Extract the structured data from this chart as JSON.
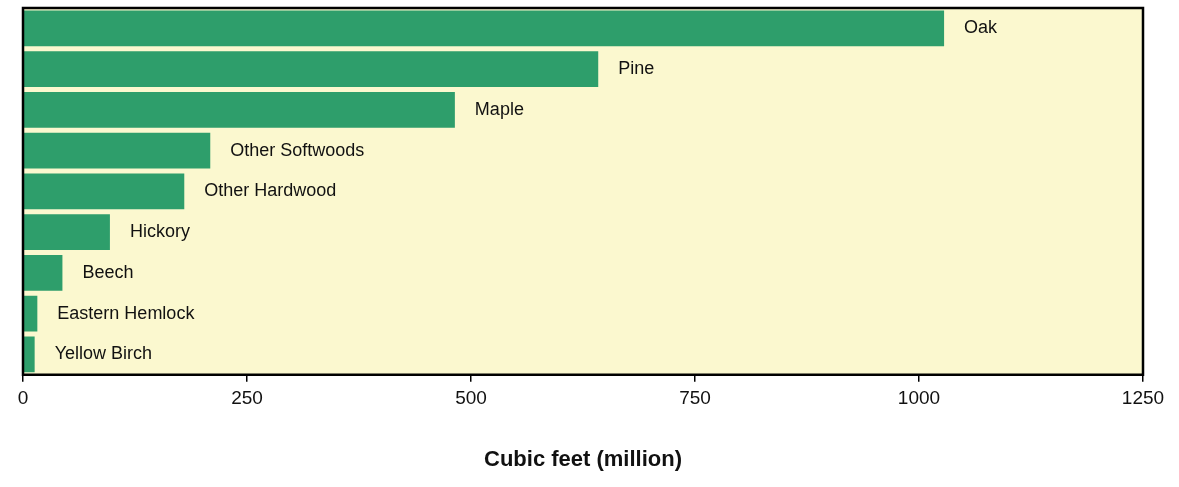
{
  "chart_data": {
    "type": "bar",
    "orientation": "horizontal",
    "xlabel": "Cubic feet (million)",
    "categories": [
      "Oak",
      "Pine",
      "Maple",
      "Other Softwoods",
      "Other Hardwood",
      "Hickory",
      "Beech",
      "Eastern Hemlock",
      "Yellow Birch"
    ],
    "values": [
      1028,
      642,
      482,
      209,
      180,
      97,
      44,
      16,
      13
    ],
    "color": "#2e9e6b",
    "xlim": [
      0,
      1250
    ],
    "xticks": [
      0,
      250,
      500,
      750,
      1000,
      1250
    ],
    "grid": false,
    "legend": false,
    "tick_labels": "x"
  }
}
